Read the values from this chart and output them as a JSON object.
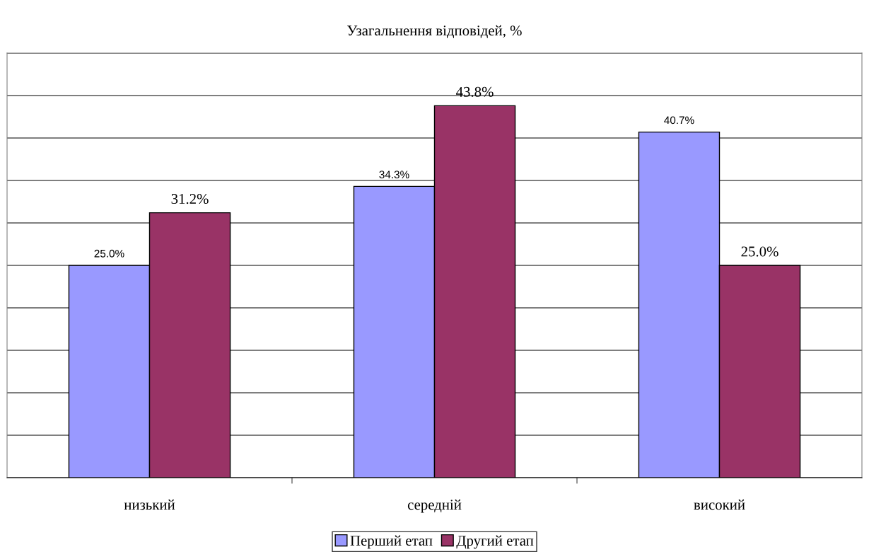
{
  "chart_data": {
    "type": "bar",
    "title": "Узагальнення відповідей, %",
    "categories": [
      "низький",
      "середній",
      "високий"
    ],
    "series": [
      {
        "name": "Перший етап",
        "color": "#9999ff",
        "values": [
          25.0,
          34.3,
          40.7
        ],
        "value_labels": [
          "25.0%",
          "34.3%",
          "40.7%"
        ]
      },
      {
        "name": "Другий етап",
        "color": "#993366",
        "values": [
          31.2,
          43.8,
          25.0
        ],
        "value_labels": [
          "31.2%",
          "43.8%",
          "25.0%"
        ]
      }
    ],
    "ylim": [
      0,
      50
    ],
    "yticks": [
      {
        "value": 0,
        "label": null
      },
      {
        "value": 5,
        "label": null
      },
      {
        "value": 10,
        "label": null
      },
      {
        "value": 15,
        "label": null
      },
      {
        "value": 20,
        "label": null
      },
      {
        "value": 25,
        "label": null
      },
      {
        "value": 30,
        "label": null
      },
      {
        "value": 35,
        "label": null
      },
      {
        "value": 40,
        "label": null
      },
      {
        "value": 45,
        "label": null
      },
      {
        "value": 50,
        "label": null
      }
    ],
    "grid": "y",
    "legend": "bottom",
    "tick_labels": "x"
  }
}
